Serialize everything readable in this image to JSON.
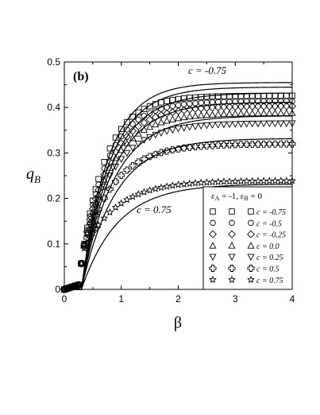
{
  "chart_data": {
    "type": "scatter",
    "panel_label": "(b)",
    "xlabel": "β",
    "ylabel_main": "q",
    "ylabel_sub": "B",
    "xlim": [
      0,
      4
    ],
    "ylim": [
      0,
      0.5
    ],
    "x_ticks": [
      "0",
      "1",
      "2",
      "3",
      "4"
    ],
    "y_ticks": [
      "0",
      "0.1",
      "0.2",
      "0.3",
      "0.4",
      "0.5"
    ],
    "annotations": [
      {
        "text": "c = -0.75",
        "at_series": "c = -0.75"
      },
      {
        "text": "c = 0.75",
        "at_series": "c = 0.75"
      }
    ],
    "legend": {
      "title_parts": [
        "ε",
        "A",
        " = -1, ",
        "ε",
        "B",
        " = 0"
      ],
      "position": "lower-right"
    },
    "x": [
      0.0,
      0.05,
      0.1,
      0.15,
      0.2,
      0.25,
      0.3,
      0.35,
      0.4,
      0.45,
      0.5,
      0.55,
      0.6,
      0.7,
      0.8,
      0.9,
      1.0,
      1.1,
      1.2,
      1.3,
      1.4,
      1.5,
      1.6,
      1.7,
      1.8,
      1.9,
      2.0,
      2.1,
      2.2,
      2.3,
      2.4,
      2.5,
      2.6,
      2.7,
      2.8,
      2.9,
      3.0,
      3.1,
      3.2,
      3.3,
      3.4,
      3.5,
      3.6,
      3.7,
      3.8,
      3.9,
      4.0
    ],
    "series": [
      {
        "name": "c = -0.75",
        "marker": "square",
        "q_max": 0.463,
        "line_max": 0.455,
        "k": 1.7,
        "x_threshold": 0.33
      },
      {
        "name": "c = -0.5",
        "marker": "circle",
        "q_max": 0.45,
        "line_max": 0.445,
        "k": 1.6,
        "x_threshold": 0.33
      },
      {
        "name": "c = -0.25",
        "marker": "diamond",
        "q_max": 0.438,
        "line_max": 0.432,
        "k": 1.5,
        "x_threshold": 0.33
      },
      {
        "name": "c = 0.0",
        "marker": "triangle-up",
        "q_max": 0.422,
        "line_max": 0.412,
        "k": 1.45,
        "x_threshold": 0.33
      },
      {
        "name": "c = 0.25",
        "marker": "triangle-down",
        "q_max": 0.397,
        "line_max": 0.382,
        "k": 1.4,
        "x_threshold": 0.33
      },
      {
        "name": "c = 0.5",
        "marker": "plus",
        "q_max": 0.348,
        "line_max": 0.332,
        "k": 1.35,
        "x_threshold": 0.33
      },
      {
        "name": "c = 0.75",
        "marker": "star",
        "q_max": 0.26,
        "line_max": 0.232,
        "k": 1.25,
        "x_threshold": 0.33
      }
    ],
    "grid": false
  }
}
